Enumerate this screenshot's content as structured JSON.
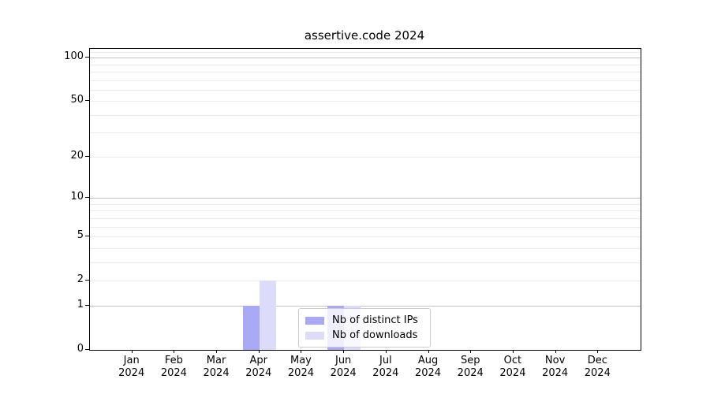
{
  "title": "assertive.code 2024",
  "chart_data": {
    "type": "bar",
    "title": "assertive.code 2024",
    "categories": [
      "Jan",
      "Feb",
      "Mar",
      "Apr",
      "May",
      "Jun",
      "Jul",
      "Aug",
      "Sep",
      "Oct",
      "Nov",
      "Dec"
    ],
    "year_label": "2024",
    "series": [
      {
        "name": "Nb of distinct IPs",
        "color": "#a9a9f5",
        "values": [
          0,
          0,
          0,
          1,
          0,
          1,
          0,
          0,
          0,
          0,
          0,
          0
        ]
      },
      {
        "name": "Nb of downloads",
        "color": "#dcdcfa",
        "values": [
          0,
          0,
          0,
          2,
          0,
          1,
          0,
          0,
          0,
          0,
          0,
          0
        ]
      }
    ],
    "xlabel": "",
    "ylabel": "",
    "yscale": "log1p",
    "ylim": [
      0,
      115
    ],
    "yticks": [
      0,
      1,
      2,
      5,
      10,
      20,
      50,
      100
    ],
    "yticks_minor": [
      3,
      4,
      6,
      7,
      8,
      9,
      30,
      40,
      60,
      70,
      80,
      90,
      110
    ],
    "yticks_emphasized": [
      1,
      10,
      100
    ],
    "grid": true,
    "legend_position": "lower-center",
    "colors": {
      "major_grid": "#c3c3c3",
      "minor_grid": "#ebebeb",
      "axis": "#000000",
      "legend_border": "#cccccc"
    }
  }
}
